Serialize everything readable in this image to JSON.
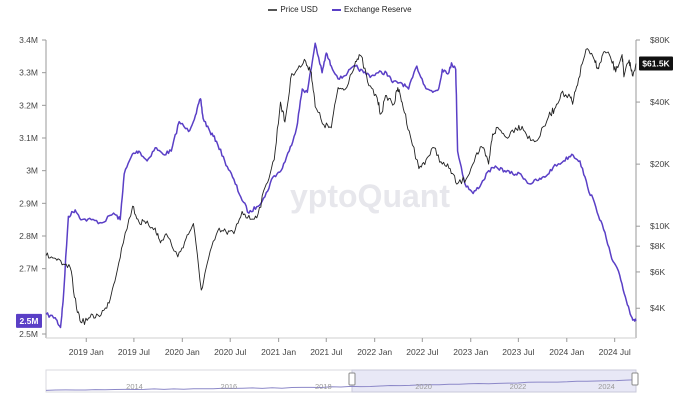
{
  "chart_data": {
    "type": "line",
    "title": "",
    "watermark": "yptoQuant",
    "legend": {
      "placement": "top-center",
      "items": [
        {
          "label": "Price USD",
          "color": "#555555"
        },
        {
          "label": "Exchange Reserve",
          "color": "#5a3fc6"
        }
      ]
    },
    "x_axis": {
      "range": [
        "2018-08-01",
        "2024-09-20"
      ],
      "ticks": [
        {
          "label": "2019 Jan",
          "date": "2019-01-01"
        },
        {
          "label": "2019 Jul",
          "date": "2019-07-01"
        },
        {
          "label": "2020 Jan",
          "date": "2020-01-01"
        },
        {
          "label": "2020 Jul",
          "date": "2020-07-01"
        },
        {
          "label": "2021 Jan",
          "date": "2021-01-01"
        },
        {
          "label": "2021 Jul",
          "date": "2021-07-01"
        },
        {
          "label": "2022 Jan",
          "date": "2022-01-01"
        },
        {
          "label": "2022 Jul",
          "date": "2022-07-01"
        },
        {
          "label": "2023 Jan",
          "date": "2023-01-01"
        },
        {
          "label": "2023 Jul",
          "date": "2023-07-01"
        },
        {
          "label": "2024 Jan",
          "date": "2024-01-01"
        },
        {
          "label": "2024 Jul",
          "date": "2024-07-01"
        }
      ]
    },
    "y_left": {
      "label": "",
      "range": [
        2500000,
        3400000
      ],
      "ticks": [
        {
          "label": "3.4M",
          "value": 3400000
        },
        {
          "label": "3.3M",
          "value": 3300000
        },
        {
          "label": "3.2M",
          "value": 3200000
        },
        {
          "label": "3.1M",
          "value": 3100000
        },
        {
          "label": "3M",
          "value": 3000000
        },
        {
          "label": "2.9M",
          "value": 2900000
        },
        {
          "label": "2.8M",
          "value": 2800000
        },
        {
          "label": "2.7M",
          "value": 2700000
        },
        {
          "label": "2.5M",
          "value": 2500000
        }
      ],
      "current_tag": {
        "label": "2.5M",
        "color": "#5a3fc6"
      }
    },
    "y_right": {
      "label": "",
      "scale": "log",
      "range": [
        3000,
        80000
      ],
      "ticks": [
        {
          "label": "$80K",
          "value": 80000
        },
        {
          "label": "$40K",
          "value": 40000
        },
        {
          "label": "$20K",
          "value": 20000
        },
        {
          "label": "$10K",
          "value": 10000
        },
        {
          "label": "$8K",
          "value": 8000
        },
        {
          "label": "$6K",
          "value": 6000
        },
        {
          "label": "$4K",
          "value": 4000
        }
      ],
      "current_tag": {
        "label": "$61.5K",
        "color": "#111111"
      }
    },
    "grid": {
      "vertical": false,
      "horizontal": false
    },
    "series": [
      {
        "name": "Price USD",
        "axis": "right",
        "color": "#222222",
        "points": [
          [
            "2018-08-01",
            7200
          ],
          [
            "2018-09-01",
            7000
          ],
          [
            "2018-10-01",
            6500
          ],
          [
            "2018-11-01",
            6300
          ],
          [
            "2018-11-25",
            4000
          ],
          [
            "2018-12-15",
            3400
          ],
          [
            "2019-01-15",
            3600
          ],
          [
            "2019-02-15",
            3700
          ],
          [
            "2019-03-20",
            4000
          ],
          [
            "2019-04-15",
            5200
          ],
          [
            "2019-05-15",
            7800
          ],
          [
            "2019-06-26",
            12500
          ],
          [
            "2019-07-20",
            10500
          ],
          [
            "2019-08-15",
            10300
          ],
          [
            "2019-09-20",
            9800
          ],
          [
            "2019-10-10",
            8300
          ],
          [
            "2019-11-01",
            9200
          ],
          [
            "2019-12-15",
            7100
          ],
          [
            "2020-01-15",
            8700
          ],
          [
            "2020-02-12",
            10300
          ],
          [
            "2020-03-13",
            4900
          ],
          [
            "2020-04-10",
            7000
          ],
          [
            "2020-05-15",
            9500
          ],
          [
            "2020-06-15",
            9400
          ],
          [
            "2020-07-15",
            9200
          ],
          [
            "2020-08-15",
            11800
          ],
          [
            "2020-09-15",
            10800
          ],
          [
            "2020-10-15",
            11500
          ],
          [
            "2020-11-15",
            16000
          ],
          [
            "2020-12-15",
            21000
          ],
          [
            "2021-01-08",
            40000
          ],
          [
            "2021-01-25",
            32000
          ],
          [
            "2021-02-20",
            55000
          ],
          [
            "2021-03-15",
            58000
          ],
          [
            "2021-04-14",
            63000
          ],
          [
            "2021-05-05",
            56000
          ],
          [
            "2021-05-20",
            38000
          ],
          [
            "2021-06-22",
            31000
          ],
          [
            "2021-07-20",
            30000
          ],
          [
            "2021-08-15",
            47000
          ],
          [
            "2021-09-10",
            46000
          ],
          [
            "2021-10-20",
            63000
          ],
          [
            "2021-11-10",
            67000
          ],
          [
            "2021-12-10",
            48000
          ],
          [
            "2022-01-10",
            42000
          ],
          [
            "2022-01-24",
            35000
          ],
          [
            "2022-02-15",
            43000
          ],
          [
            "2022-03-15",
            39000
          ],
          [
            "2022-03-30",
            47000
          ],
          [
            "2022-04-15",
            40000
          ],
          [
            "2022-05-12",
            29000
          ],
          [
            "2022-06-18",
            19000
          ],
          [
            "2022-07-15",
            21000
          ],
          [
            "2022-08-15",
            24000
          ],
          [
            "2022-09-15",
            20000
          ],
          [
            "2022-10-15",
            19000
          ],
          [
            "2022-11-09",
            16000
          ],
          [
            "2022-12-15",
            17000
          ],
          [
            "2023-01-20",
            22000
          ],
          [
            "2023-02-15",
            24000
          ],
          [
            "2023-03-10",
            20000
          ],
          [
            "2023-03-25",
            28000
          ],
          [
            "2023-04-15",
            30000
          ],
          [
            "2023-05-15",
            27000
          ],
          [
            "2023-06-20",
            30000
          ],
          [
            "2023-07-15",
            30500
          ],
          [
            "2023-08-17",
            26000
          ],
          [
            "2023-09-15",
            26500
          ],
          [
            "2023-10-24",
            34000
          ],
          [
            "2023-11-15",
            37000
          ],
          [
            "2023-12-10",
            44000
          ],
          [
            "2024-01-15",
            42000
          ],
          [
            "2024-01-23",
            39000
          ],
          [
            "2024-02-15",
            52000
          ],
          [
            "2024-03-14",
            72000
          ],
          [
            "2024-04-15",
            64000
          ],
          [
            "2024-05-01",
            58000
          ],
          [
            "2024-05-20",
            70000
          ],
          [
            "2024-06-15",
            66000
          ],
          [
            "2024-07-05",
            56000
          ],
          [
            "2024-07-29",
            68000
          ],
          [
            "2024-08-05",
            53000
          ],
          [
            "2024-08-25",
            64000
          ],
          [
            "2024-09-06",
            54000
          ],
          [
            "2024-09-20",
            61500
          ]
        ]
      },
      {
        "name": "Exchange Reserve",
        "axis": "left",
        "color": "#5a3fc6",
        "points": [
          [
            "2018-08-01",
            2560000
          ],
          [
            "2018-09-05",
            2550000
          ],
          [
            "2018-09-25",
            2520000
          ],
          [
            "2018-10-05",
            2600000
          ],
          [
            "2018-10-25",
            2860000
          ],
          [
            "2018-11-20",
            2880000
          ],
          [
            "2018-12-15",
            2850000
          ],
          [
            "2019-01-20",
            2850000
          ],
          [
            "2019-03-01",
            2840000
          ],
          [
            "2019-04-15",
            2870000
          ],
          [
            "2019-05-10",
            2850000
          ],
          [
            "2019-05-25",
            2990000
          ],
          [
            "2019-06-25",
            3050000
          ],
          [
            "2019-07-20",
            3060000
          ],
          [
            "2019-08-20",
            3030000
          ],
          [
            "2019-09-20",
            3070000
          ],
          [
            "2019-10-20",
            3050000
          ],
          [
            "2019-11-20",
            3060000
          ],
          [
            "2019-12-20",
            3150000
          ],
          [
            "2020-01-25",
            3120000
          ],
          [
            "2020-02-20",
            3170000
          ],
          [
            "2020-03-10",
            3220000
          ],
          [
            "2020-03-20",
            3160000
          ],
          [
            "2020-04-15",
            3120000
          ],
          [
            "2020-05-10",
            3090000
          ],
          [
            "2020-06-10",
            3030000
          ],
          [
            "2020-07-10",
            2980000
          ],
          [
            "2020-08-10",
            2920000
          ],
          [
            "2020-09-10",
            2870000
          ],
          [
            "2020-10-10",
            2890000
          ],
          [
            "2020-11-10",
            2920000
          ],
          [
            "2020-12-10",
            2980000
          ],
          [
            "2021-01-10",
            3000000
          ],
          [
            "2021-02-10",
            3060000
          ],
          [
            "2021-03-10",
            3130000
          ],
          [
            "2021-04-01",
            3250000
          ],
          [
            "2021-04-20",
            3240000
          ],
          [
            "2021-05-20",
            3390000
          ],
          [
            "2021-06-15",
            3300000
          ],
          [
            "2021-07-01",
            3360000
          ],
          [
            "2021-07-20",
            3320000
          ],
          [
            "2021-08-20",
            3280000
          ],
          [
            "2021-09-20",
            3300000
          ],
          [
            "2021-10-20",
            3320000
          ],
          [
            "2021-11-20",
            3300000
          ],
          [
            "2021-12-20",
            3290000
          ],
          [
            "2022-01-15",
            3300000
          ],
          [
            "2022-02-15",
            3300000
          ],
          [
            "2022-03-10",
            3270000
          ],
          [
            "2022-04-10",
            3270000
          ],
          [
            "2022-05-10",
            3250000
          ],
          [
            "2022-06-10",
            3320000
          ],
          [
            "2022-07-10",
            3260000
          ],
          [
            "2022-08-10",
            3240000
          ],
          [
            "2022-09-01",
            3250000
          ],
          [
            "2022-09-15",
            3310000
          ],
          [
            "2022-10-10",
            3300000
          ],
          [
            "2022-10-20",
            3330000
          ],
          [
            "2022-11-05",
            3310000
          ],
          [
            "2022-11-12",
            3060000
          ],
          [
            "2022-12-10",
            2960000
          ],
          [
            "2023-01-10",
            2930000
          ],
          [
            "2023-02-10",
            2960000
          ],
          [
            "2023-03-10",
            3000000
          ],
          [
            "2023-04-10",
            3010000
          ],
          [
            "2023-05-10",
            3000000
          ],
          [
            "2023-06-10",
            2990000
          ],
          [
            "2023-07-10",
            2990000
          ],
          [
            "2023-08-10",
            2960000
          ],
          [
            "2023-09-10",
            2970000
          ],
          [
            "2023-10-10",
            2980000
          ],
          [
            "2023-11-10",
            3010000
          ],
          [
            "2023-12-20",
            3030000
          ],
          [
            "2024-01-20",
            3050000
          ],
          [
            "2024-02-20",
            3030000
          ],
          [
            "2024-03-20",
            2950000
          ],
          [
            "2024-04-20",
            2890000
          ],
          [
            "2024-05-20",
            2820000
          ],
          [
            "2024-06-20",
            2730000
          ],
          [
            "2024-07-20",
            2680000
          ],
          [
            "2024-08-15",
            2600000
          ],
          [
            "2024-09-05",
            2550000
          ],
          [
            "2024-09-20",
            2540000
          ]
        ]
      }
    ],
    "navigator": {
      "ticks": [
        "2014",
        "2016",
        "2018",
        "2020",
        "2022",
        "2024"
      ]
    }
  }
}
